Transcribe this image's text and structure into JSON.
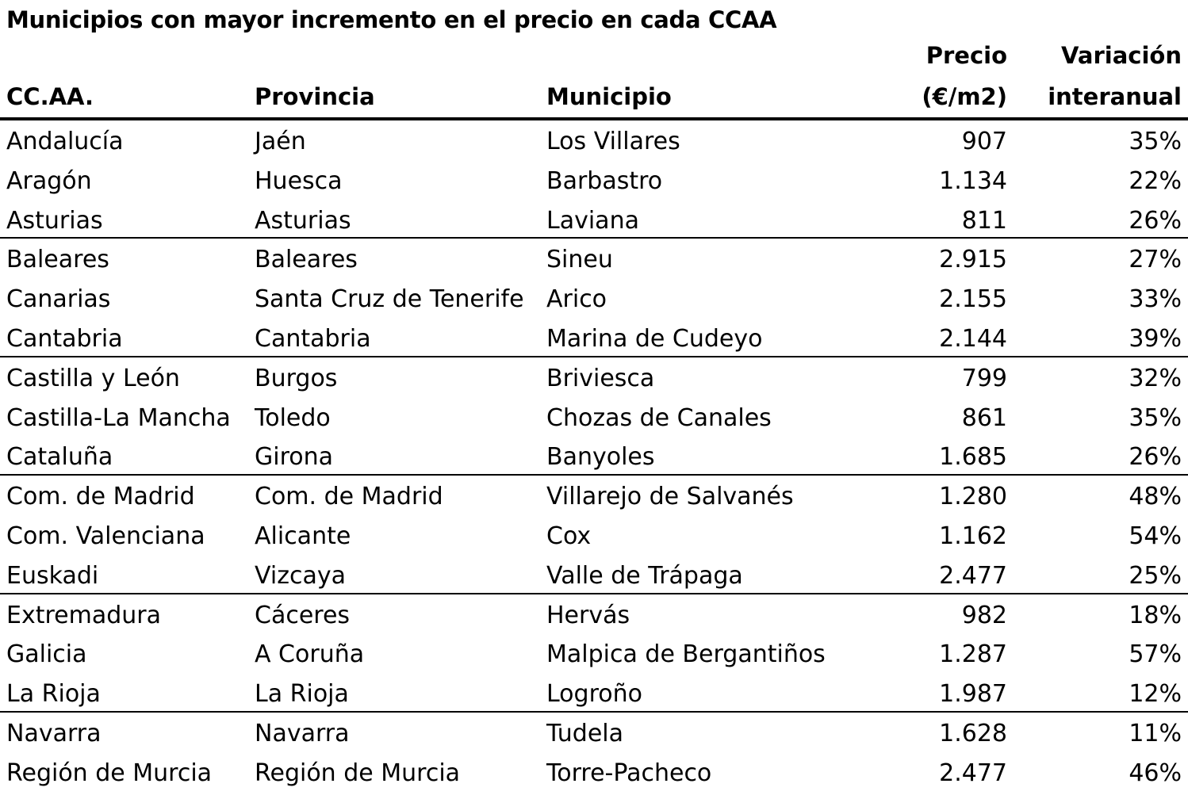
{
  "title": "Municipios con mayor incremento en el precio en cada CCAA",
  "headers": {
    "ccaa": "CC.AA.",
    "provincia": "Provincia",
    "municipio": "Municipio",
    "precio_line1": "Precio",
    "precio_line2": "(€/m2)",
    "variacion_line1": "Variación",
    "variacion_line2": "interanual"
  },
  "rows": [
    {
      "ccaa": "Andalucía",
      "provincia": "Jaén",
      "municipio": "Los Villares",
      "precio": "907",
      "variacion": "35%"
    },
    {
      "ccaa": "Aragón",
      "provincia": "Huesca",
      "municipio": "Barbastro",
      "precio": "1.134",
      "variacion": "22%"
    },
    {
      "ccaa": "Asturias",
      "provincia": "Asturias",
      "municipio": "Laviana",
      "precio": "811",
      "variacion": "26%"
    },
    {
      "ccaa": "Baleares",
      "provincia": "Baleares",
      "municipio": "Sineu",
      "precio": "2.915",
      "variacion": "27%"
    },
    {
      "ccaa": "Canarias",
      "provincia": "Santa Cruz de Tenerife",
      "municipio": "Arico",
      "precio": "2.155",
      "variacion": "33%"
    },
    {
      "ccaa": "Cantabria",
      "provincia": "Cantabria",
      "municipio": "Marina de Cudeyo",
      "precio": "2.144",
      "variacion": "39%"
    },
    {
      "ccaa": "Castilla y León",
      "provincia": "Burgos",
      "municipio": "Briviesca",
      "precio": "799",
      "variacion": "32%"
    },
    {
      "ccaa": "Castilla-La Mancha",
      "provincia": "Toledo",
      "municipio": "Chozas de Canales",
      "precio": "861",
      "variacion": "35%"
    },
    {
      "ccaa": "Cataluña",
      "provincia": "Girona",
      "municipio": "Banyoles",
      "precio": "1.685",
      "variacion": "26%"
    },
    {
      "ccaa": "Com. de Madrid",
      "provincia": "Com. de Madrid",
      "municipio": "Villarejo de Salvanés",
      "precio": "1.280",
      "variacion": "48%"
    },
    {
      "ccaa": "Com. Valenciana",
      "provincia": "Alicante",
      "municipio": "Cox",
      "precio": "1.162",
      "variacion": "54%"
    },
    {
      "ccaa": "Euskadi",
      "provincia": "Vizcaya",
      "municipio": "Valle de Trápaga",
      "precio": "2.477",
      "variacion": "25%"
    },
    {
      "ccaa": "Extremadura",
      "provincia": "Cáceres",
      "municipio": "Hervás",
      "precio": "982",
      "variacion": "18%"
    },
    {
      "ccaa": "Galicia",
      "provincia": "A Coruña",
      "municipio": "Malpica de Bergantiños",
      "precio": "1.287",
      "variacion": "57%"
    },
    {
      "ccaa": "La Rioja",
      "provincia": "La Rioja",
      "municipio": "Logroño",
      "precio": "1.987",
      "variacion": "12%"
    },
    {
      "ccaa": "Navarra",
      "provincia": "Navarra",
      "municipio": "Tudela",
      "precio": "1.628",
      "variacion": "11%"
    },
    {
      "ccaa": "Región de Murcia",
      "provincia": "Región de Murcia",
      "municipio": "Torre-Pacheco",
      "precio": "2.477",
      "variacion": "46%"
    }
  ]
}
